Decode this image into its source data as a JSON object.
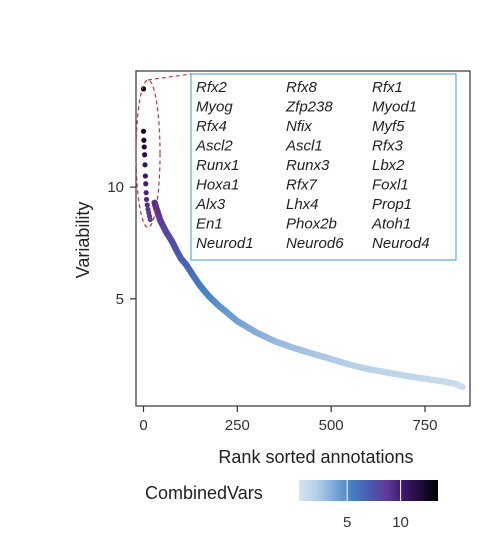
{
  "chart_data": {
    "type": "scatter",
    "xlabel": "Rank sorted annotations",
    "ylabel": "Variability",
    "xlim": [
      -20,
      870
    ],
    "ylim": [
      0.2,
      15.2
    ],
    "x_ticks": [
      0,
      250,
      500,
      750
    ],
    "y_ticks": [
      5,
      10
    ],
    "grid": false,
    "color_by": "CombinedVars",
    "colorbar": {
      "title": "CombinedVars",
      "range": [
        0.5,
        13.5
      ],
      "ticks": [
        5,
        10
      ],
      "placement": "bottom",
      "colors": [
        "#d6e4f0",
        "#b6cfe8",
        "#7fa9d8",
        "#4682c2",
        "#4a5bb0",
        "#5e3c99",
        "#3d1a6e",
        "#1f0c3a",
        "#000000"
      ]
    },
    "curve": [
      {
        "x": 0,
        "y": 14.4
      },
      {
        "x": 3,
        "y": 12.4
      },
      {
        "x": 6,
        "y": 11.7
      },
      {
        "x": 10,
        "y": 11.0
      },
      {
        "x": 15,
        "y": 10.5
      },
      {
        "x": 20,
        "y": 10.1
      },
      {
        "x": 28,
        "y": 9.4
      },
      {
        "x": 35,
        "y": 9.0
      },
      {
        "x": 45,
        "y": 8.5
      },
      {
        "x": 60,
        "y": 8.0
      },
      {
        "x": 75,
        "y": 7.6
      },
      {
        "x": 90,
        "y": 7.1
      },
      {
        "x": 100,
        "y": 6.8
      },
      {
        "x": 115,
        "y": 6.5
      },
      {
        "x": 130,
        "y": 6.1
      },
      {
        "x": 150,
        "y": 5.6
      },
      {
        "x": 175,
        "y": 5.1
      },
      {
        "x": 200,
        "y": 4.7
      },
      {
        "x": 250,
        "y": 4.0
      },
      {
        "x": 300,
        "y": 3.5
      },
      {
        "x": 350,
        "y": 3.1
      },
      {
        "x": 400,
        "y": 2.8
      },
      {
        "x": 450,
        "y": 2.55
      },
      {
        "x": 500,
        "y": 2.3
      },
      {
        "x": 550,
        "y": 2.05
      },
      {
        "x": 600,
        "y": 1.85
      },
      {
        "x": 650,
        "y": 1.7
      },
      {
        "x": 700,
        "y": 1.55
      },
      {
        "x": 750,
        "y": 1.42
      },
      {
        "x": 800,
        "y": 1.3
      },
      {
        "x": 830,
        "y": 1.2
      },
      {
        "x": 850,
        "y": 1.05
      }
    ],
    "highlighted_points": [
      {
        "x": 0,
        "y": 14.4
      },
      {
        "x": 0,
        "y": 12.5
      },
      {
        "x": 1,
        "y": 12.1
      },
      {
        "x": 2,
        "y": 11.8
      },
      {
        "x": 3,
        "y": 11.45
      },
      {
        "x": 4,
        "y": 11.0
      },
      {
        "x": 5,
        "y": 10.5
      },
      {
        "x": 6,
        "y": 10.15
      },
      {
        "x": 7,
        "y": 9.75
      },
      {
        "x": 8,
        "y": 9.45
      },
      {
        "x": 10,
        "y": 9.2
      },
      {
        "x": 12,
        "y": 9.0
      },
      {
        "x": 14,
        "y": 8.85
      },
      {
        "x": 16,
        "y": 8.7
      },
      {
        "x": 18,
        "y": 8.55
      }
    ],
    "annotation_ellipse": {
      "cx": 12,
      "cy": 11.5,
      "rx": 32,
      "ry": 3.3,
      "color": "#b8373a"
    },
    "annotation_box": {
      "border_color": "#4fa3c6",
      "columns": [
        [
          "Rfx2",
          "Myog",
          "Rfx4",
          "Ascl2",
          "Runx1",
          "Hoxa1",
          "Alx3",
          "En1",
          "Neurod1"
        ],
        [
          "Rfx8",
          "Zfp238",
          "Nfix",
          "Ascl1",
          "Runx3",
          "Rfx7",
          "Lhx4",
          "Phox2b",
          "Neurod6"
        ],
        [
          "Rfx1",
          "Myod1",
          "Myf5",
          "Rfx3",
          "Lbx2",
          "Foxl1",
          "Prop1",
          "Atoh1",
          "Neurod4"
        ]
      ]
    }
  }
}
